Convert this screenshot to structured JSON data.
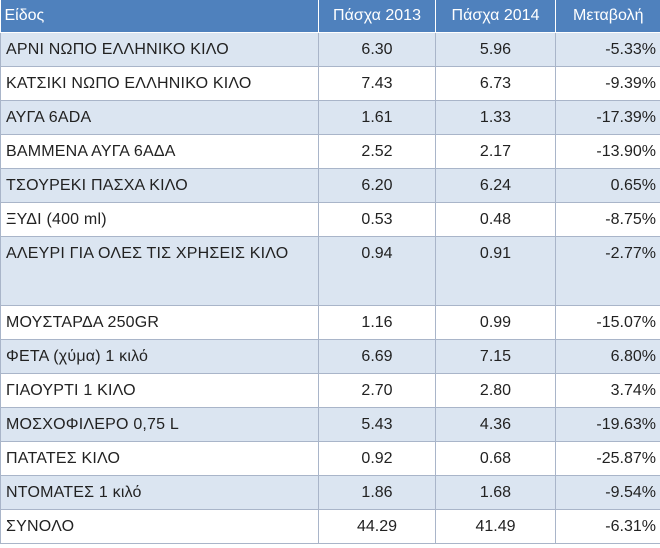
{
  "table": {
    "headers": [
      "Είδος",
      "Πάσχα 2013",
      "Πάσχα 2014",
      "Μεταβολή"
    ],
    "rows": [
      {
        "name": "ΑΡΝΙ ΝΩΠΟ ΕΛΛΗΝΙΚΟ ΚΙΛΟ",
        "y2013": "6.30",
        "y2014": "5.96",
        "change": "-5.33%"
      },
      {
        "name": "ΚΑΤΣΙΚΙ ΝΩΠΟ ΕΛΛΗΝΙΚΟ ΚΙΛΟ",
        "y2013": "7.43",
        "y2014": "6.73",
        "change": "-9.39%"
      },
      {
        "name": "ΑΥΓΑ 6ΑDΑ",
        "y2013": "1.61",
        "y2014": "1.33",
        "change": "-17.39%"
      },
      {
        "name": "ΒΑΜΜΕΝΑ ΑΥΓΑ 6ΑΔΑ",
        "y2013": "2.52",
        "y2014": "2.17",
        "change": "-13.90%"
      },
      {
        "name": "ΤΣΟΥΡΕΚΙ ΠΑΣΧΑ ΚΙΛΟ",
        "y2013": "6.20",
        "y2014": "6.24",
        "change": "0.65%"
      },
      {
        "name": "ΞΥΔΙ (400 ml)",
        "y2013": "0.53",
        "y2014": "0.48",
        "change": "-8.75%"
      },
      {
        "name": "ΑΛΕΥΡΙ ΓΙΑ ΟΛΕΣ ΤΙΣ ΧΡΗΣΕΙΣ ΚΙΛΟ",
        "y2013": "0.94",
        "y2014": "0.91",
        "change": "-2.77%"
      },
      {
        "name": "ΜΟΥΣΤΑΡΔΑ 250GR",
        "y2013": "1.16",
        "y2014": "0.99",
        "change": "-15.07%"
      },
      {
        "name": "ΦΕΤΑ (χύμα) 1 κιλό",
        "y2013": "6.69",
        "y2014": "7.15",
        "change": "6.80%"
      },
      {
        "name": "ΓΙΑΟΥΡΤΙ 1 ΚΙΛΟ",
        "y2013": "2.70",
        "y2014": "2.80",
        "change": "3.74%"
      },
      {
        "name": "ΜΟΣΧΟΦΙΛΕΡΟ 0,75 L",
        "y2013": "5.43",
        "y2014": "4.36",
        "change": "-19.63%"
      },
      {
        "name": "ΠΑΤΑΤΕΣ ΚΙΛΟ",
        "y2013": "0.92",
        "y2014": "0.68",
        "change": "-25.87%"
      },
      {
        "name": "ΝΤΟΜΑΤΕΣ 1 κιλό",
        "y2013": "1.86",
        "y2014": "1.68",
        "change": "-9.54%"
      },
      {
        "name": "ΣΥΝΟΛΟ",
        "y2013": "44.29",
        "y2014": "41.49",
        "change": "-6.31%"
      }
    ]
  },
  "colors": {
    "header_bg": "#4f81bd",
    "stripe_bg": "#dbe5f1"
  }
}
